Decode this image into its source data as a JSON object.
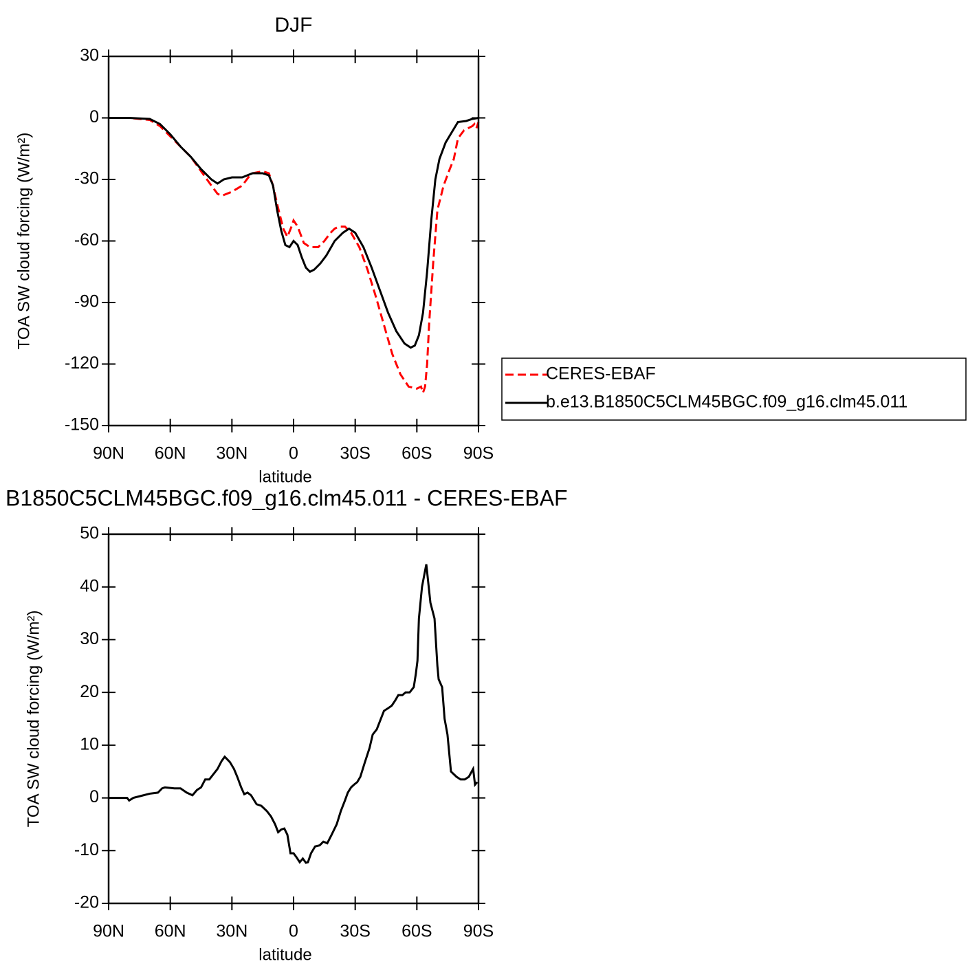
{
  "chart_data": [
    {
      "type": "line",
      "title": "DJF",
      "x_label": "latitude",
      "y_label": "TOA SW cloud forcing (W/m²)",
      "xlim": [
        90,
        -90
      ],
      "xticks": [
        {
          "value": 90,
          "label": "90N"
        },
        {
          "value": 60,
          "label": "60N"
        },
        {
          "value": 30,
          "label": "30N"
        },
        0,
        {
          "value": -30,
          "label": "30S"
        },
        {
          "value": -60,
          "label": "60S"
        },
        {
          "value": -90,
          "label": "90S"
        }
      ],
      "ylim": [
        -150,
        30
      ],
      "yticks": [
        -150,
        -120,
        -90,
        -60,
        -30,
        0,
        30
      ],
      "legend": "right",
      "series": [
        {
          "name": "CERES-EBAF",
          "color": "#ff0000",
          "line_style": "dashed",
          "x": [
            90,
            80,
            70,
            65,
            60,
            55,
            50,
            45,
            40,
            37,
            35,
            30,
            25,
            22,
            20,
            15,
            12,
            10,
            8,
            5,
            3,
            1,
            0,
            -2,
            -5,
            -8,
            -12,
            -15,
            -18,
            -20,
            -22,
            -25,
            -28,
            -32,
            -36,
            -40,
            -44,
            -48,
            -52,
            -56,
            -60,
            -62,
            -63,
            -64,
            -65,
            -66,
            -68,
            -70,
            -73,
            -76,
            -78,
            -80,
            -83,
            -85,
            -87,
            -88,
            -89,
            -90
          ],
          "values": [
            0,
            0,
            -1,
            -4,
            -9,
            -14,
            -19,
            -26,
            -33,
            -37,
            -38,
            -36,
            -33,
            -29,
            -27,
            -26,
            -27,
            -33,
            -42,
            -54,
            -58,
            -53,
            -50,
            -53,
            -61,
            -63,
            -63,
            -60,
            -56,
            -54,
            -53,
            -53,
            -56,
            -63,
            -74,
            -87,
            -101,
            -115,
            -125,
            -131,
            -132,
            -131,
            -134,
            -131,
            -120,
            -100,
            -70,
            -45,
            -33,
            -25,
            -20,
            -10,
            -6,
            -5,
            -4,
            -3,
            -5,
            -2
          ]
        },
        {
          "name": "b.e13.B1850C5CLM45BGC.f09_g16.clm45.011",
          "color": "#000000",
          "line_style": "solid",
          "x": [
            90,
            80,
            70,
            65,
            60,
            55,
            50,
            45,
            40,
            37,
            34,
            30,
            25,
            20,
            15,
            12,
            10,
            8,
            6,
            4,
            2,
            0,
            -2,
            -4,
            -6,
            -8,
            -10,
            -13,
            -16,
            -20,
            -24,
            -27,
            -30,
            -34,
            -38,
            -42,
            -46,
            -50,
            -54,
            -57,
            -59,
            -61,
            -63,
            -65,
            -67,
            -69,
            -71,
            -74,
            -77,
            -80,
            -84,
            -87,
            -90
          ],
          "values": [
            0,
            0,
            -0.5,
            -3,
            -8,
            -14,
            -19,
            -25,
            -30,
            -32,
            -30,
            -29,
            -29,
            -27,
            -27,
            -28,
            -33,
            -45,
            -55,
            -62,
            -63,
            -60,
            -62,
            -68,
            -73,
            -75,
            -74,
            -71,
            -67,
            -60,
            -56,
            -54,
            -56,
            -63,
            -73,
            -84,
            -95,
            -104,
            -110,
            -112,
            -111,
            -106,
            -95,
            -75,
            -50,
            -30,
            -20,
            -12,
            -7,
            -2,
            -1.5,
            -0.5,
            0
          ]
        }
      ]
    },
    {
      "type": "line",
      "title": "B1850C5CLM45BGC.f09_g16.clm45.011 - CERES-EBAF",
      "x_label": "latitude",
      "y_label": "TOA SW cloud forcing (W/m²)",
      "xlim": [
        90,
        -90
      ],
      "xticks": [
        {
          "value": 90,
          "label": "90N"
        },
        {
          "value": 60,
          "label": "60N"
        },
        {
          "value": 30,
          "label": "30N"
        },
        0,
        {
          "value": -30,
          "label": "30S"
        },
        {
          "value": -60,
          "label": "60S"
        },
        {
          "value": -90,
          "label": "90S"
        }
      ],
      "ylim": [
        -20,
        50
      ],
      "yticks": [
        -20,
        -10,
        0,
        10,
        20,
        30,
        40,
        50
      ],
      "series": [
        {
          "color": "#000000",
          "line_style": "solid",
          "x": [
            90,
            85,
            81,
            80,
            78,
            74,
            70,
            66,
            64,
            62.6,
            58,
            55,
            52,
            49.2,
            47,
            45,
            43,
            41,
            39,
            37,
            35,
            33.5,
            31,
            29,
            27.4,
            25.5,
            24,
            22.4,
            20.7,
            18,
            15.7,
            13,
            11,
            9,
            7.5,
            6,
            4.5,
            3,
            1.5,
            0,
            -1.5,
            -3,
            -4.5,
            -6,
            -7,
            -8.5,
            -10.5,
            -12.7,
            -14.5,
            -16.4,
            -18.5,
            -21,
            -23,
            -25,
            -26.4,
            -28,
            -29.4,
            -31,
            -32.5,
            -34.5,
            -37,
            -38.5,
            -40.5,
            -42,
            -44,
            -46,
            -47.8,
            -49.5,
            -51,
            -53,
            -54.5,
            -56.5,
            -58.5,
            -59.5,
            -60.3,
            -61,
            -62.5,
            -64.6,
            -66.6,
            -68.6,
            -70,
            -70.6,
            -72.3,
            -73.5,
            -74.9,
            -76.6,
            -79.3,
            -81.3,
            -83.3,
            -85.3,
            -87.4,
            -88.3,
            -89.4
          ],
          "values": [
            0,
            0,
            0,
            -0.5,
            0,
            0.4,
            0.8,
            1,
            1.8,
            2,
            1.8,
            1.8,
            1,
            0.5,
            1.5,
            2,
            3.5,
            3.5,
            4.5,
            5.5,
            7,
            7.8,
            6.8,
            5.5,
            4,
            2,
            0.7,
            1,
            0.5,
            -1.2,
            -1.5,
            -2.5,
            -3.5,
            -5,
            -6.5,
            -6,
            -5.8,
            -7,
            -10.5,
            -10.5,
            -11.3,
            -12.2,
            -11.5,
            -12.3,
            -12.2,
            -10.5,
            -9.2,
            -9,
            -8.3,
            -8.6,
            -7,
            -5,
            -2.5,
            -0.5,
            1,
            2,
            2.5,
            3,
            4,
            6.5,
            9.5,
            12,
            13,
            14.5,
            16.5,
            17,
            17.5,
            18.5,
            19.5,
            19.5,
            20,
            20,
            21,
            23.5,
            26,
            34,
            40,
            44.3,
            37,
            34,
            25,
            22.5,
            21,
            15,
            12,
            5,
            4,
            3.5,
            3.5,
            4,
            5.5,
            2.5,
            3
          ]
        }
      ]
    }
  ]
}
